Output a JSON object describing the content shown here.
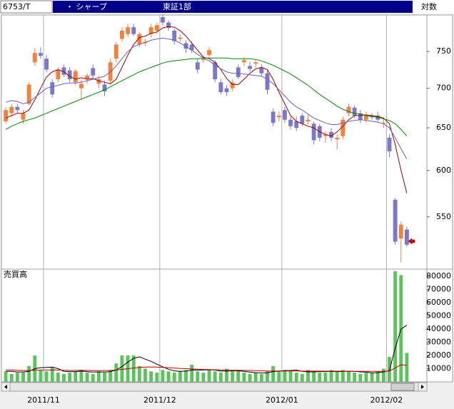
{
  "header": {
    "code": "6753/T",
    "name": "・ シャープ",
    "market": "東証1部",
    "scale": "対数"
  },
  "chart_data": [
    {
      "type": "candlestick",
      "log_scale": true,
      "up_color": "#f4803c",
      "down_color": "#7a78cc",
      "ylim": [
        500,
        800
      ],
      "yticks": [
        550,
        600,
        650,
        700,
        750
      ],
      "open": [
        658,
        668,
        676,
        660,
        680,
        735,
        748,
        740,
        708,
        712,
        728,
        724,
        708,
        700,
        712,
        727,
        706,
        705,
        710,
        740,
        768,
        775,
        785,
        760,
        762,
        775,
        780,
        800,
        792,
        780,
        768,
        762,
        760,
        735,
        738,
        745,
        735,
        708,
        700,
        700,
        728,
        735,
        730,
        733,
        728,
        720,
        670,
        663,
        672,
        660,
        658,
        665,
        658,
        655,
        652,
        640,
        645,
        636,
        640,
        668,
        675,
        668,
        660,
        665,
        665,
        655,
        638,
        568,
        528,
        537
      ],
      "high": [
        676,
        680,
        680,
        672,
        708,
        755,
        756,
        745,
        712,
        728,
        732,
        728,
        726,
        712,
        720,
        732,
        716,
        710,
        740,
        764,
        785,
        790,
        790,
        778,
        768,
        790,
        792,
        803,
        795,
        782,
        774,
        766,
        764,
        740,
        744,
        756,
        738,
        712,
        704,
        712,
        732,
        742,
        736,
        738,
        732,
        724,
        674,
        670,
        676,
        664,
        664,
        668,
        666,
        658,
        655,
        646,
        650,
        642,
        664,
        680,
        678,
        672,
        670,
        668,
        670,
        662,
        642,
        570,
        545,
        540
      ],
      "low": [
        655,
        664,
        668,
        655,
        678,
        730,
        740,
        722,
        688,
        708,
        715,
        708,
        704,
        685,
        706,
        712,
        700,
        690,
        705,
        735,
        764,
        770,
        772,
        756,
        758,
        770,
        776,
        788,
        780,
        760,
        764,
        748,
        748,
        720,
        734,
        742,
        708,
        692,
        690,
        696,
        712,
        730,
        722,
        728,
        716,
        692,
        652,
        658,
        656,
        648,
        646,
        652,
        654,
        630,
        634,
        632,
        634,
        624,
        636,
        664,
        662,
        656,
        656,
        660,
        658,
        650,
        615,
        522,
        505,
        520
      ],
      "close": [
        672,
        676,
        672,
        668,
        705,
        748,
        744,
        725,
        692,
        725,
        718,
        712,
        723,
        706,
        717,
        717,
        712,
        696,
        735,
        760,
        780,
        785,
        775,
        775,
        764,
        785,
        788,
        792,
        784,
        765,
        770,
        754,
        752,
        725,
        740,
        752,
        712,
        695,
        695,
        708,
        715,
        738,
        726,
        735,
        720,
        698,
        656,
        665,
        660,
        652,
        650,
        655,
        660,
        635,
        638,
        642,
        638,
        638,
        660,
        676,
        665,
        660,
        665,
        663,
        660,
        656,
        622,
        525,
        542,
        522
      ],
      "lines": [
        {
          "color": "#a00000",
          "values": [
            662,
            665,
            668,
            668,
            672,
            685,
            700,
            715,
            722,
            725,
            722,
            716,
            712,
            714,
            712,
            713,
            710,
            708,
            706,
            712,
            728,
            745,
            760,
            770,
            772,
            776,
            778,
            784,
            786,
            785,
            780,
            772,
            762,
            752,
            742,
            740,
            735,
            725,
            713,
            705,
            705,
            712,
            720,
            726,
            728,
            725,
            712,
            695,
            680,
            665,
            658,
            655,
            652,
            650,
            645,
            642,
            640,
            645,
            652,
            660,
            665,
            665,
            666,
            665,
            664,
            662,
            655,
            630,
            600,
            575
          ]
        },
        {
          "color": "#6a5cc8",
          "values": [
            682,
            684,
            683,
            680,
            682,
            688,
            694,
            700,
            702,
            704,
            706,
            707,
            707,
            708,
            710,
            712,
            714,
            716,
            722,
            730,
            740,
            750,
            757,
            760,
            763,
            766,
            768,
            769,
            768,
            766,
            762,
            757,
            752,
            746,
            741,
            737,
            731,
            726,
            722,
            720,
            720,
            719,
            718,
            717,
            716,
            712,
            706,
            698,
            690,
            682,
            676,
            672,
            667,
            662,
            659,
            656,
            654,
            654,
            656,
            658,
            659,
            660,
            659,
            658,
            657,
            655,
            650,
            638,
            625,
            613
          ]
        },
        {
          "color": "#008a00",
          "values": [
            648,
            652,
            655,
            658,
            660,
            662,
            665,
            668,
            671,
            674,
            677,
            680,
            683,
            686,
            689,
            692,
            695,
            698,
            702,
            706,
            710,
            714,
            718,
            722,
            725,
            728,
            731,
            734,
            736,
            737,
            738,
            739,
            740,
            740,
            741,
            741,
            741,
            741,
            741,
            740,
            740,
            740,
            740,
            739,
            737,
            734,
            731,
            727,
            723,
            719,
            714,
            709,
            704,
            698,
            692,
            687,
            682,
            677,
            673,
            670,
            668,
            667,
            665,
            664,
            663,
            661,
            659,
            655,
            648,
            640
          ]
        }
      ]
    },
    {
      "type": "bar",
      "title": "売買高",
      "color": "#5cc45c",
      "ylim": [
        0,
        85000
      ],
      "yticks": [
        10000,
        20000,
        30000,
        40000,
        50000,
        60000,
        70000,
        80000
      ],
      "categories": [
        null,
        null,
        null,
        null,
        null,
        null,
        null,
        "2011/11",
        null,
        null,
        null,
        null,
        null,
        null,
        null,
        null,
        null,
        null,
        null,
        null,
        null,
        null,
        null,
        null,
        null,
        null,
        null,
        "2011/12",
        null,
        null,
        null,
        null,
        null,
        null,
        null,
        null,
        null,
        null,
        null,
        null,
        null,
        null,
        null,
        null,
        null,
        null,
        null,
        null,
        "2012/01",
        null,
        null,
        null,
        null,
        null,
        null,
        null,
        null,
        null,
        null,
        null,
        null,
        null,
        null,
        null,
        null,
        null,
        "2012/02",
        null,
        null,
        null
      ],
      "values": [
        8000,
        6000,
        7000,
        7000,
        12000,
        20000,
        9000,
        8000,
        11000,
        7000,
        6000,
        7000,
        8000,
        9000,
        7000,
        6000,
        8000,
        7000,
        9000,
        14000,
        20000,
        20000,
        20000,
        12000,
        10000,
        8000,
        7000,
        9000,
        8000,
        7000,
        8000,
        9000,
        13000,
        8000,
        7000,
        9000,
        8000,
        7000,
        10000,
        8000,
        9000,
        7000,
        6000,
        7000,
        6000,
        8000,
        12000,
        8000,
        9000,
        8000,
        7000,
        6000,
        9000,
        8000,
        7000,
        7000,
        9000,
        7000,
        9000,
        8000,
        7000,
        6000,
        7000,
        7000,
        8000,
        10000,
        19000,
        84000,
        81000,
        22000
      ],
      "lines": [
        {
          "color": "#000000",
          "values": [
            8000,
            8000,
            7500,
            7500,
            8000,
            10000,
            10800,
            11000,
            11200,
            10000,
            8000,
            7800,
            7800,
            8200,
            7800,
            7400,
            7600,
            7400,
            7800,
            9000,
            11600,
            15000,
            17800,
            19000,
            17200,
            15600,
            13400,
            11400,
            9600,
            8400,
            8000,
            8200,
            9000,
            9000,
            9000,
            9200,
            9000,
            8200,
            8200,
            8400,
            8400,
            8000,
            7400,
            7000,
            6800,
            6800,
            7800,
            8200,
            8600,
            8600,
            9000,
            8000,
            7600,
            7600,
            7800,
            7800,
            8000,
            7600,
            8000,
            8000,
            8000,
            7600,
            7400,
            6800,
            7000,
            7600,
            8600,
            25600,
            40000,
            43000
          ]
        },
        {
          "color": "#c00000",
          "values": [
            9000,
            9000,
            8800,
            8600,
            8600,
            8800,
            9000,
            9000,
            9100,
            9000,
            8800,
            8700,
            8700,
            8800,
            8700,
            8600,
            8600,
            8600,
            8700,
            9000,
            9500,
            10000,
            10500,
            11000,
            11200,
            11300,
            11200,
            11000,
            10800,
            10500,
            10200,
            10000,
            9800,
            9600,
            9400,
            9300,
            9200,
            9000,
            8900,
            8800,
            8800,
            8700,
            8600,
            8500,
            8400,
            8300,
            8300,
            8300,
            8300,
            8300,
            8300,
            8200,
            8200,
            8200,
            8200,
            8100,
            8100,
            8100,
            8100,
            8100,
            8000,
            8000,
            8000,
            8000,
            8000,
            8000,
            8300,
            10500,
            13000,
            12500
          ]
        }
      ]
    }
  ]
}
